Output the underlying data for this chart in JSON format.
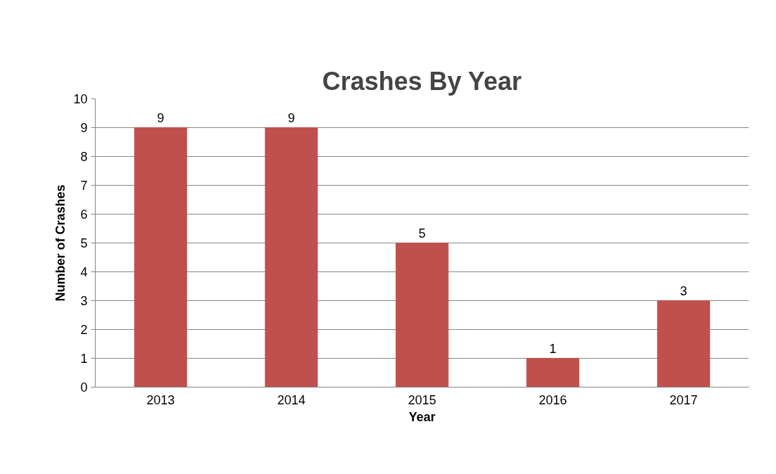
{
  "chart_data": {
    "type": "bar",
    "title": "Crashes By Year",
    "xlabel": "Year",
    "ylabel": "Number of Crashes",
    "categories": [
      "2013",
      "2014",
      "2015",
      "2016",
      "2017"
    ],
    "values": [
      9,
      9,
      5,
      1,
      3
    ],
    "color": "#c0504d",
    "ylim": [
      0,
      10
    ],
    "yticks": [
      0,
      1,
      2,
      3,
      4,
      5,
      6,
      7,
      8,
      9,
      10
    ],
    "grid": "y",
    "data_labels": true
  }
}
